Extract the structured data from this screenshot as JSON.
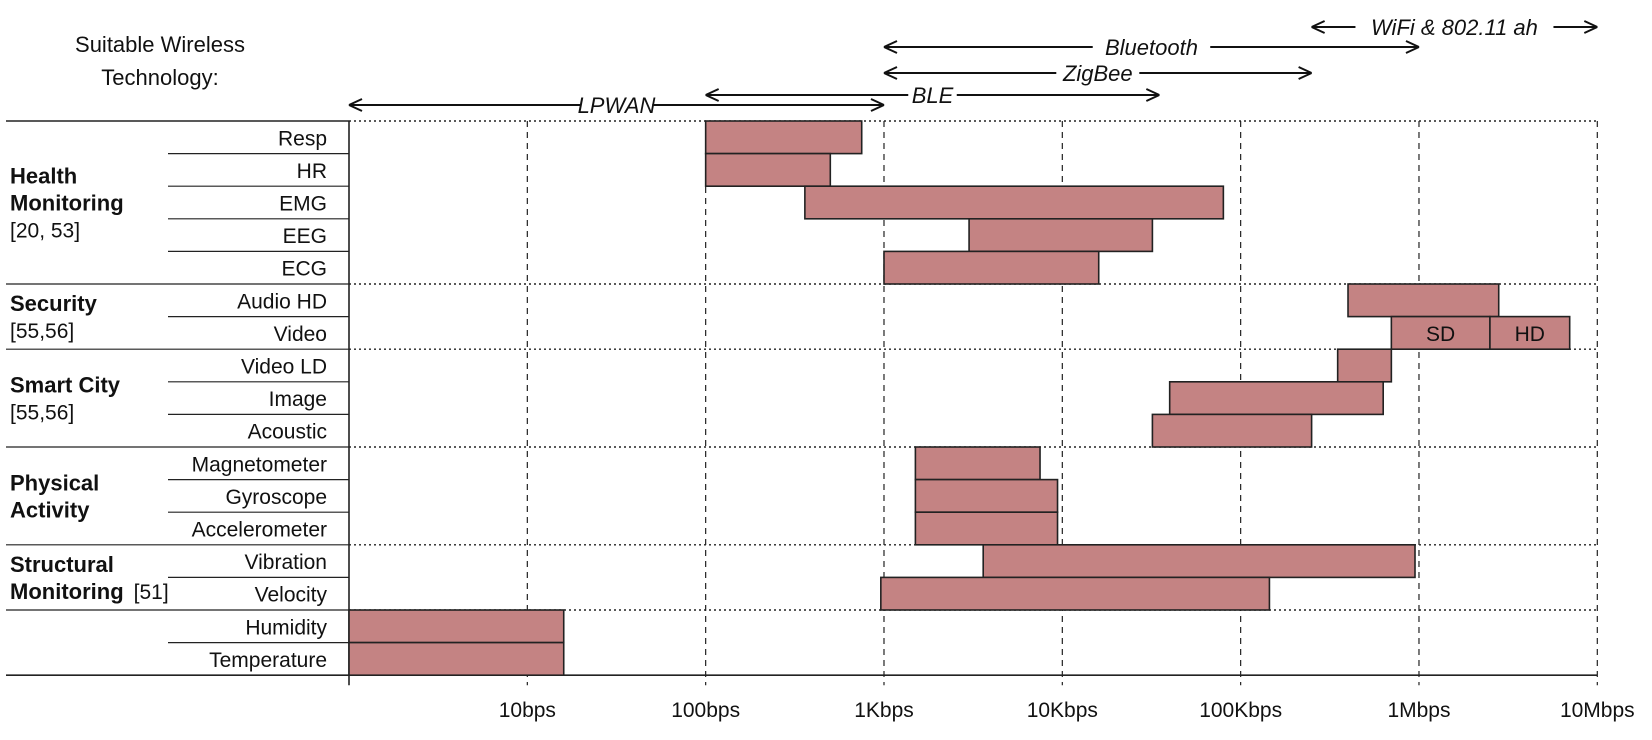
{
  "header": {
    "line1": "Suitable Wireless",
    "line2": "Technology:"
  },
  "chart_data": {
    "type": "bar",
    "orientation": "horizontal",
    "x_scale": "log",
    "x_unit": "bps",
    "xlim": [
      1,
      10000000
    ],
    "x_ticks": [
      {
        "value": 10,
        "label": "10bps"
      },
      {
        "value": 100,
        "label": "100bps"
      },
      {
        "value": 1000,
        "label": "1Kbps"
      },
      {
        "value": 10000,
        "label": "10Kbps"
      },
      {
        "value": 100000,
        "label": "100Kbps"
      },
      {
        "value": 1000000,
        "label": "1Mbps"
      },
      {
        "value": 10000000,
        "label": "10Mbps"
      }
    ],
    "grid": true,
    "technologies": [
      {
        "name": "WiFi & 802.11 ah",
        "from": 250000,
        "to": 10000000
      },
      {
        "name": "Bluetooth",
        "from": 1000,
        "to": 1000000
      },
      {
        "name": "ZigBee",
        "from": 1000,
        "to": 250000
      },
      {
        "name": "BLE",
        "from": 100,
        "to": 35000
      },
      {
        "name": "LPWAN",
        "from": 1,
        "to": 1000
      }
    ],
    "groups": [
      {
        "lines": [
          {
            "text": "Health",
            "bold": true
          },
          {
            "text": "Monitoring",
            "bold": true
          },
          {
            "text": "[20, 53]",
            "bold": false
          }
        ],
        "rows": [
          0,
          4
        ]
      },
      {
        "lines": [
          {
            "text": "Security",
            "bold": true
          },
          {
            "text": "[55,56]",
            "bold": false
          }
        ],
        "rows": [
          5,
          6
        ]
      },
      {
        "lines": [
          {
            "text": "Smart  City",
            "bold": true
          },
          {
            "text": "[55,56]",
            "bold": false
          }
        ],
        "rows": [
          7,
          9
        ]
      },
      {
        "lines": [
          {
            "text": "Physical",
            "bold": true
          },
          {
            "text": "Activity",
            "bold": true
          }
        ],
        "rows": [
          10,
          12
        ]
      },
      {
        "lines": [
          {
            "text": "Structural",
            "bold": true
          },
          {
            "text": "Monitoring",
            "bold": true,
            "suffix": "[51]"
          }
        ],
        "rows": [
          13,
          14
        ]
      },
      {
        "lines": [],
        "rows": [
          15,
          16
        ]
      }
    ],
    "rows": [
      {
        "label": "Resp",
        "bars": [
          {
            "from": 100,
            "to": 750
          }
        ]
      },
      {
        "label": "HR",
        "bars": [
          {
            "from": 100,
            "to": 500
          }
        ]
      },
      {
        "label": "EMG",
        "bars": [
          {
            "from": 360,
            "to": 80000
          }
        ]
      },
      {
        "label": "EEG",
        "bars": [
          {
            "from": 3000,
            "to": 32000
          }
        ]
      },
      {
        "label": "ECG",
        "bars": [
          {
            "from": 1000,
            "to": 16000
          }
        ]
      },
      {
        "label": "Audio HD",
        "bars": [
          {
            "from": 400000,
            "to": 2800000
          }
        ]
      },
      {
        "label": "Video",
        "bars": [
          {
            "from": 700000,
            "to": 2500000,
            "label": "SD"
          },
          {
            "from": 2500000,
            "to": 7000000,
            "label": "HD"
          }
        ]
      },
      {
        "label": "Video LD",
        "bars": [
          {
            "from": 350000,
            "to": 700000
          }
        ]
      },
      {
        "label": "Image",
        "bars": [
          {
            "from": 40000,
            "to": 630000
          }
        ]
      },
      {
        "label": "Acoustic",
        "bars": [
          {
            "from": 32000,
            "to": 250000
          }
        ]
      },
      {
        "label": "Magnetometer",
        "bars": [
          {
            "from": 1500,
            "to": 7500
          }
        ]
      },
      {
        "label": "Gyroscope",
        "bars": [
          {
            "from": 1500,
            "to": 9400
          }
        ]
      },
      {
        "label": "Accelerometer",
        "bars": [
          {
            "from": 1500,
            "to": 9400
          }
        ]
      },
      {
        "label": "Vibration",
        "bars": [
          {
            "from": 3600,
            "to": 950000
          }
        ]
      },
      {
        "label": "Velocity",
        "bars": [
          {
            "from": 960,
            "to": 145000
          }
        ]
      },
      {
        "label": "Humidity",
        "bars": [
          {
            "from": 1,
            "to": 16
          }
        ]
      },
      {
        "label": "Temperature",
        "bars": [
          {
            "from": 1,
            "to": 16
          }
        ]
      }
    ],
    "colors": {
      "bar": "#c48383",
      "bar_stroke": "#222222"
    }
  }
}
